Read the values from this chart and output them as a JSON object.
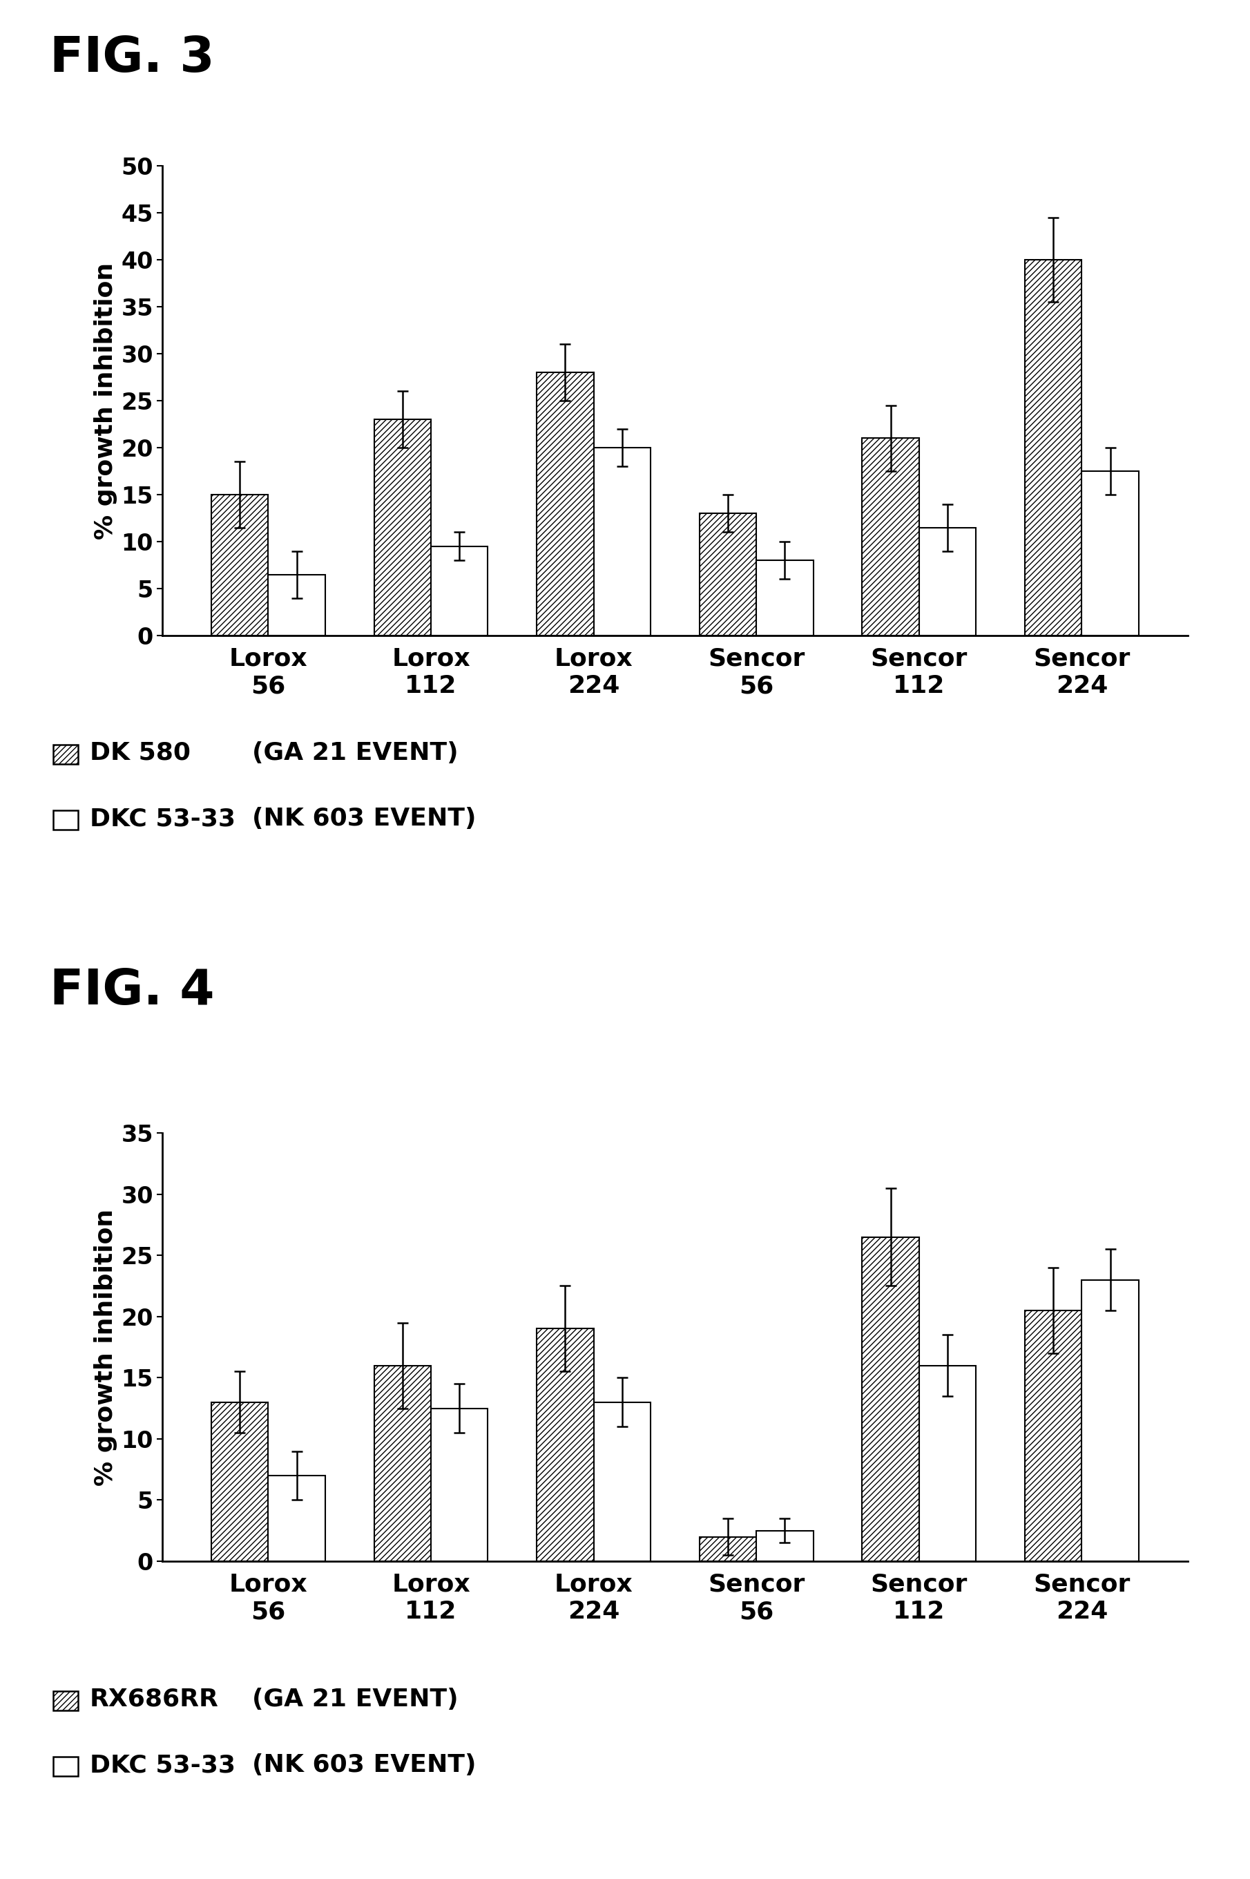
{
  "fig3": {
    "title": "FIG. 3",
    "categories": [
      "Lorox\n56",
      "Lorox\n112",
      "Lorox\n224",
      "Sencor\n56",
      "Sencor\n112",
      "Sencor\n224"
    ],
    "series1_values": [
      15,
      23,
      28,
      13,
      21,
      40
    ],
    "series1_errors": [
      3.5,
      3.0,
      3.0,
      2.0,
      3.5,
      4.5
    ],
    "series2_values": [
      6.5,
      9.5,
      20,
      8,
      11.5,
      17.5
    ],
    "series2_errors": [
      2.5,
      1.5,
      2.0,
      2.0,
      2.5,
      2.5
    ],
    "ylabel": "% growth inhibition",
    "ylim": [
      0,
      50
    ],
    "yticks": [
      0,
      5,
      10,
      15,
      20,
      25,
      30,
      35,
      40,
      45,
      50
    ],
    "legend1_label": "DK 580",
    "legend1_event": "(GA 21 EVENT)",
    "legend2_label": "DKC 53-33",
    "legend2_event": "(NK 603 EVENT)"
  },
  "fig4": {
    "title": "FIG. 4",
    "categories": [
      "Lorox\n56",
      "Lorox\n112",
      "Lorox\n224",
      "Sencor\n56",
      "Sencor\n112",
      "Sencor\n224"
    ],
    "series1_values": [
      13,
      16,
      19,
      2,
      26.5,
      20.5
    ],
    "series1_errors": [
      2.5,
      3.5,
      3.5,
      1.5,
      4.0,
      3.5
    ],
    "series2_values": [
      7,
      12.5,
      13,
      2.5,
      16,
      23
    ],
    "series2_errors": [
      2.0,
      2.0,
      2.0,
      1.0,
      2.5,
      2.5
    ],
    "ylabel": "% growth inhibition",
    "ylim": [
      0,
      35
    ],
    "yticks": [
      0,
      5,
      10,
      15,
      20,
      25,
      30,
      35
    ],
    "legend1_label": "RX686RR",
    "legend1_event": "(GA 21 EVENT)",
    "legend2_label": "DKC 53-33",
    "legend2_event": "(NK 603 EVENT)"
  },
  "hatch_pattern": "////",
  "bar_width": 0.35,
  "background_color": "white",
  "title_fontsize": 52,
  "axis_label_fontsize": 26,
  "tick_fontsize": 24,
  "legend_fontsize": 26,
  "category_fontsize": 26
}
